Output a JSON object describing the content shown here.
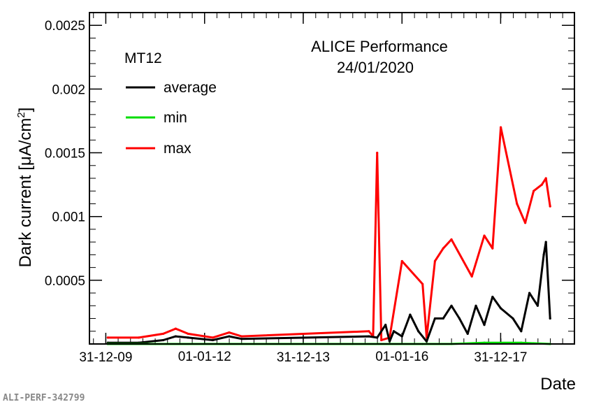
{
  "chart_data": {
    "type": "line",
    "title": "ALICE Performance",
    "subtitle": "24/01/2020",
    "detector_label": "MT12",
    "xlabel": "Date",
    "ylabel_main": "Dark current [μA/cm",
    "ylabel_sup": "2",
    "ylabel_end": "]",
    "footer": "ALI-PERF-342799",
    "x_axis": {
      "type": "date",
      "range": [
        "2009-09-01",
        "2019-06-30"
      ],
      "ticks": [
        {
          "date": "2009-12-31",
          "label": "31-12-09",
          "row": 1
        },
        {
          "date": "2012-01-01",
          "label": "01-01-12",
          "row": 2
        },
        {
          "date": "2013-12-31",
          "label": "31-12-13",
          "row": 1
        },
        {
          "date": "2016-01-01",
          "label": "01-01-16",
          "row": 2
        },
        {
          "date": "2017-12-31",
          "label": "31-12-17",
          "row": 1
        }
      ]
    },
    "y_axis": {
      "range": [
        0,
        0.0026
      ],
      "ticks": [
        {
          "value": 0.0005,
          "label": "0.0005"
        },
        {
          "value": 0.001,
          "label": "0.001"
        },
        {
          "value": 0.0015,
          "label": "0.0015"
        },
        {
          "value": 0.002,
          "label": "0.002"
        },
        {
          "value": 0.0025,
          "label": "0.0025"
        }
      ]
    },
    "legend_position": "top-left",
    "series": [
      {
        "name": "average",
        "color": "#000000",
        "points": [
          [
            "2010-01-15",
            1e-05
          ],
          [
            "2010-09-01",
            1e-05
          ],
          [
            "2011-03-01",
            3e-05
          ],
          [
            "2011-06-01",
            6e-05
          ],
          [
            "2011-09-01",
            5e-05
          ],
          [
            "2012-03-01",
            3e-05
          ],
          [
            "2012-07-01",
            6e-05
          ],
          [
            "2012-10-01",
            4e-05
          ],
          [
            "2015-05-01",
            6e-05
          ],
          [
            "2015-07-01",
            5e-05
          ],
          [
            "2015-09-01",
            0.00015
          ],
          [
            "2015-10-01",
            2e-05
          ],
          [
            "2015-11-01",
            0.0001
          ],
          [
            "2016-01-01",
            6e-05
          ],
          [
            "2016-03-01",
            0.00023
          ],
          [
            "2016-05-01",
            0.0001
          ],
          [
            "2016-07-01",
            2e-05
          ],
          [
            "2016-09-01",
            0.0002
          ],
          [
            "2016-11-01",
            0.0002
          ],
          [
            "2017-01-01",
            0.0003
          ],
          [
            "2017-03-01",
            0.0002
          ],
          [
            "2017-05-01",
            8e-05
          ],
          [
            "2017-07-01",
            0.0003
          ],
          [
            "2017-09-01",
            0.00015
          ],
          [
            "2017-11-01",
            0.00037
          ],
          [
            "2018-01-01",
            0.00028
          ],
          [
            "2018-04-01",
            0.0002
          ],
          [
            "2018-06-01",
            0.0001
          ],
          [
            "2018-08-01",
            0.0004
          ],
          [
            "2018-10-01",
            0.0003
          ],
          [
            "2018-11-15",
            0.0007
          ],
          [
            "2018-12-01",
            0.0008
          ],
          [
            "2019-01-01",
            0.0002
          ]
        ]
      },
      {
        "name": "min",
        "color": "#00dd00",
        "points": [
          [
            "2010-01-15",
            0.0
          ],
          [
            "2011-01-01",
            0.0
          ],
          [
            "2013-01-01",
            0.0
          ],
          [
            "2015-01-01",
            0.0
          ],
          [
            "2016-06-01",
            0.0
          ],
          [
            "2017-01-01",
            0.0
          ],
          [
            "2017-09-01",
            1e-05
          ],
          [
            "2018-06-01",
            1e-05
          ],
          [
            "2019-01-01",
            0.0
          ]
        ]
      },
      {
        "name": "max",
        "color": "#ff0000",
        "points": [
          [
            "2010-01-15",
            5e-05
          ],
          [
            "2010-09-01",
            5e-05
          ],
          [
            "2011-03-01",
            8e-05
          ],
          [
            "2011-06-01",
            0.00012
          ],
          [
            "2011-09-01",
            8e-05
          ],
          [
            "2012-03-01",
            5e-05
          ],
          [
            "2012-07-01",
            9e-05
          ],
          [
            "2012-10-01",
            6e-05
          ],
          [
            "2015-05-01",
            0.0001
          ],
          [
            "2015-06-01",
            6e-05
          ],
          [
            "2015-07-01",
            0.0015
          ],
          [
            "2015-08-01",
            3e-05
          ],
          [
            "2015-10-01",
            5e-05
          ],
          [
            "2016-01-01",
            0.00065
          ],
          [
            "2016-06-01",
            0.00047
          ],
          [
            "2016-07-01",
            5e-05
          ],
          [
            "2016-09-01",
            0.00065
          ],
          [
            "2016-11-01",
            0.00075
          ],
          [
            "2017-01-01",
            0.00082
          ],
          [
            "2017-06-01",
            0.00053
          ],
          [
            "2017-09-01",
            0.00085
          ],
          [
            "2017-11-01",
            0.00075
          ],
          [
            "2018-01-01",
            0.0017
          ],
          [
            "2018-05-01",
            0.0011
          ],
          [
            "2018-07-01",
            0.00095
          ],
          [
            "2018-09-01",
            0.0012
          ],
          [
            "2018-11-01",
            0.00125
          ],
          [
            "2018-12-01",
            0.0013
          ],
          [
            "2019-01-01",
            0.00108
          ]
        ]
      }
    ]
  }
}
